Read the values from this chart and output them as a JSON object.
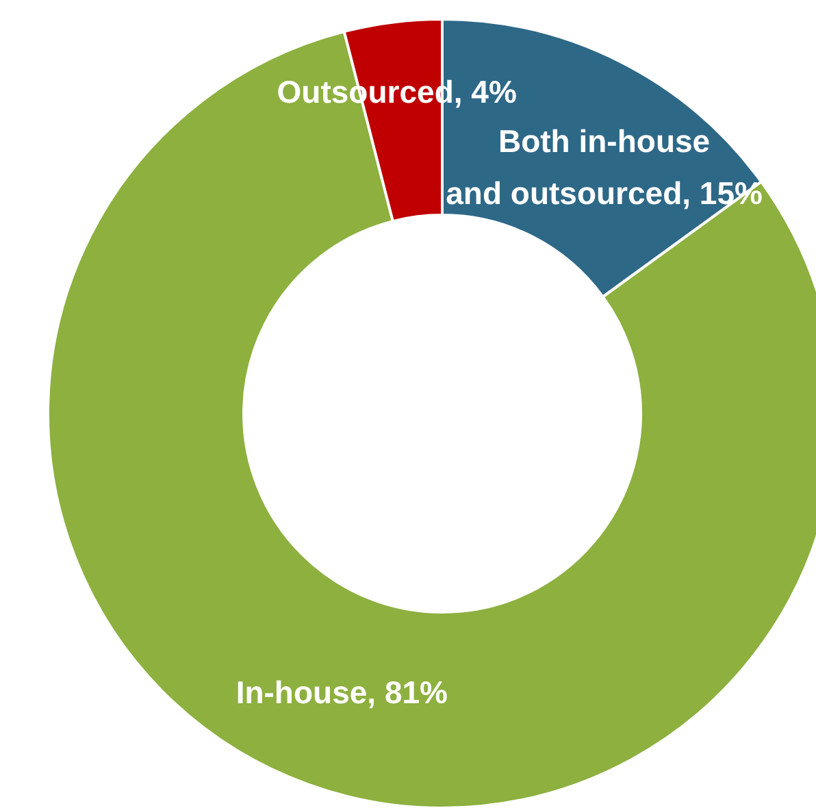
{
  "chart_data": {
    "type": "donut",
    "categories": [
      "Both in-house and outsourced",
      "In-house",
      "Outsourced"
    ],
    "values": [
      15,
      81,
      4
    ],
    "value_labels": [
      "15%",
      "81%",
      "4%"
    ],
    "colors": [
      "#2e6887",
      "#8db03f",
      "#c00000"
    ],
    "legend": false
  }
}
